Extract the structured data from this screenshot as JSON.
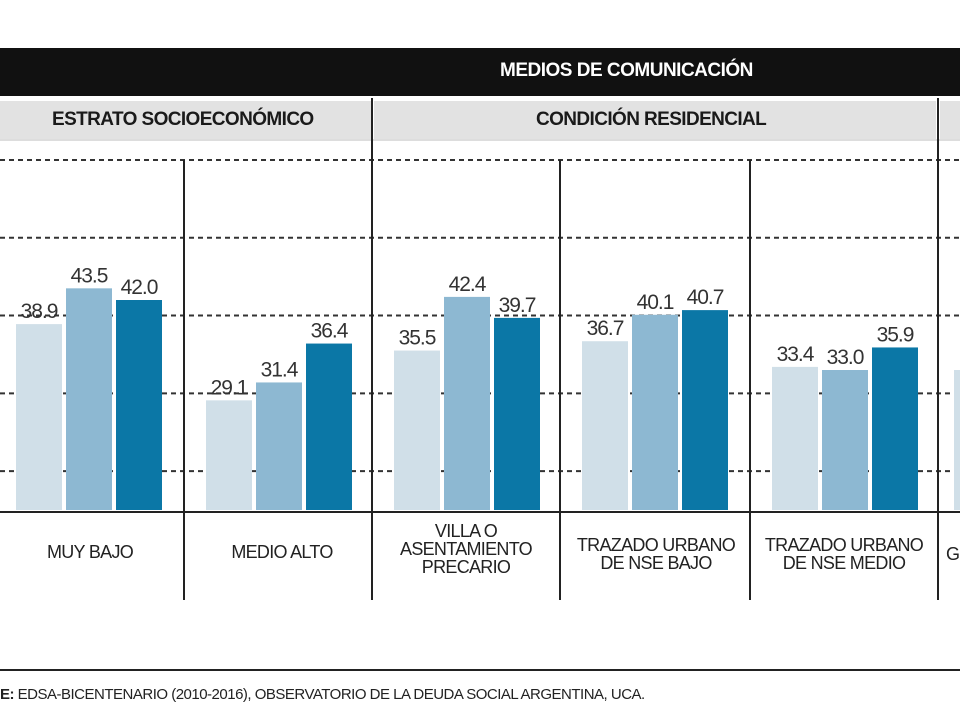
{
  "header": {
    "title": "MEDIOS DE COMUNICACIÓN",
    "groups": [
      {
        "label": "ESTRATO SOCIOECONÓMICO"
      },
      {
        "label": "CONDICIÓN RESIDENCIAL"
      }
    ]
  },
  "chart_data": {
    "type": "bar",
    "title": "MEDIOS DE COMUNICACIÓN",
    "categories": [
      "MUY BAJO",
      "MEDIO ALTO",
      "VILLA O ASENTAMIENTO PRECARIO",
      "TRAZADO URBANO DE NSE BAJO",
      "TRAZADO URBANO DE NSE MEDIO"
    ],
    "category_lines": [
      [
        "MUY BAJO"
      ],
      [
        "MEDIO ALTO"
      ],
      [
        "VILLA O",
        "ASENTAMIENTO",
        "PRECARIO"
      ],
      [
        "TRAZADO URBANO",
        "DE NSE BAJO"
      ],
      [
        "TRAZADO URBANO",
        "DE NSE MEDIO"
      ]
    ],
    "series": [
      {
        "values": [
          38.9,
          29.1,
          35.5,
          36.7,
          33.4
        ],
        "color": "#d0dfe8"
      },
      {
        "values": [
          43.5,
          31.4,
          42.4,
          40.1,
          33.0
        ],
        "color": "#8db8d2"
      },
      {
        "values": [
          42.0,
          36.4,
          39.7,
          40.7,
          35.9
        ],
        "color": "#0b77a6"
      }
    ],
    "ylim": [
      15,
      60
    ],
    "grid": true,
    "partial_category": "G"
  },
  "source": {
    "prefix": "E:",
    "text": "EDSA-BICENTENARIO (2010-2016), OBSERVATORIO DE LA DEUDA SOCIAL ARGENTINA, UCA."
  }
}
